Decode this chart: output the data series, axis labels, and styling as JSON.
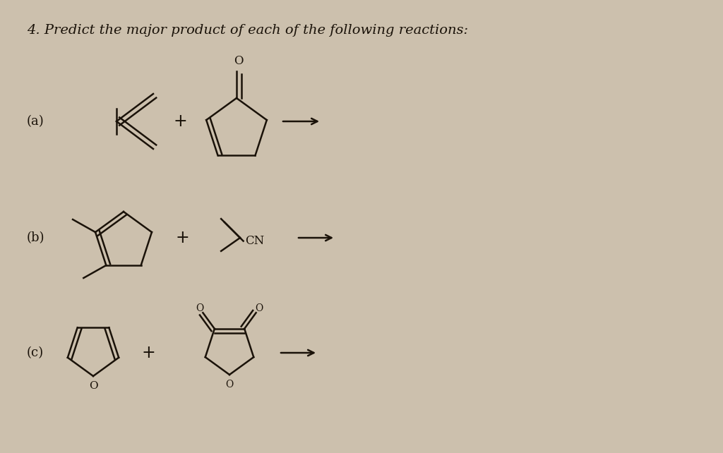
{
  "background_color": "#ccc0ad",
  "title_text": "4. Predict the major product of each of the following reactions:",
  "text_color": "#1a1209",
  "label_a": "(a)",
  "label_b": "(b)",
  "label_c": "(c)",
  "label_fontsize": 13,
  "title_fontsize": 14
}
